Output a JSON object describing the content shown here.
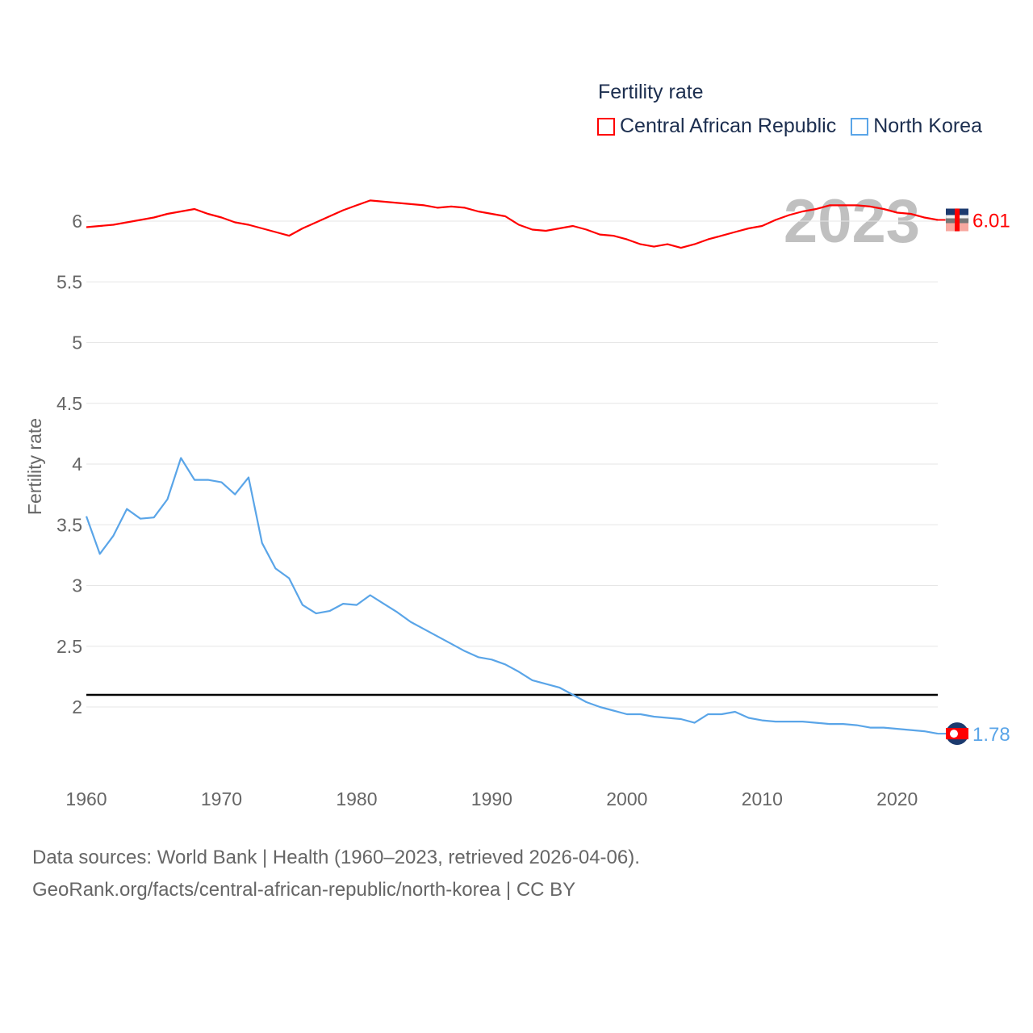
{
  "chart_data": {
    "type": "line",
    "title": "Fertility rate",
    "ylabel": "Fertility rate",
    "xlabel": "",
    "xlim": [
      1960,
      2023
    ],
    "ylim": [
      1.6,
      6.3
    ],
    "x_ticks": [
      1960,
      1970,
      1980,
      1990,
      2000,
      2010,
      2020
    ],
    "y_ticks": [
      2,
      2.5,
      3,
      3.5,
      4,
      4.5,
      5,
      5.5,
      6
    ],
    "grid": true,
    "legend_placement": "top-right",
    "year_watermark": "2023",
    "reference_line": {
      "y": 2.1,
      "color": "#000000"
    },
    "x": [
      1960,
      1961,
      1962,
      1963,
      1964,
      1965,
      1966,
      1967,
      1968,
      1969,
      1970,
      1971,
      1972,
      1973,
      1974,
      1975,
      1976,
      1977,
      1978,
      1979,
      1980,
      1981,
      1982,
      1983,
      1984,
      1985,
      1986,
      1987,
      1988,
      1989,
      1990,
      1991,
      1992,
      1993,
      1994,
      1995,
      1996,
      1997,
      1998,
      1999,
      2000,
      2001,
      2002,
      2003,
      2004,
      2005,
      2006,
      2007,
      2008,
      2009,
      2010,
      2011,
      2012,
      2013,
      2014,
      2015,
      2016,
      2017,
      2018,
      2019,
      2020,
      2021,
      2022,
      2023
    ],
    "series": [
      {
        "name": "Central African Republic",
        "color": "#ff0000",
        "end_label": "6.01",
        "values": [
          5.95,
          5.96,
          5.97,
          5.99,
          6.01,
          6.03,
          6.06,
          6.08,
          6.1,
          6.06,
          6.03,
          5.99,
          5.97,
          5.94,
          5.91,
          5.88,
          5.94,
          5.99,
          6.04,
          6.09,
          6.13,
          6.17,
          6.16,
          6.15,
          6.14,
          6.13,
          6.11,
          6.12,
          6.11,
          6.08,
          6.06,
          6.04,
          5.97,
          5.93,
          5.92,
          5.94,
          5.96,
          5.93,
          5.89,
          5.88,
          5.85,
          5.81,
          5.79,
          5.81,
          5.78,
          5.81,
          5.85,
          5.88,
          5.91,
          5.94,
          5.96,
          6.01,
          6.05,
          6.08,
          6.1,
          6.13,
          6.13,
          6.13,
          6.12,
          6.1,
          6.07,
          6.06,
          6.03,
          6.01
        ]
      },
      {
        "name": "North Korea",
        "color": "#5aa5e8",
        "end_label": "1.78",
        "values": [
          3.57,
          3.26,
          3.41,
          3.63,
          3.55,
          3.56,
          3.71,
          4.05,
          3.87,
          3.87,
          3.85,
          3.75,
          3.89,
          3.35,
          3.14,
          3.06,
          2.84,
          2.77,
          2.79,
          2.85,
          2.84,
          2.92,
          2.85,
          2.78,
          2.7,
          2.64,
          2.58,
          2.52,
          2.46,
          2.41,
          2.39,
          2.35,
          2.29,
          2.22,
          2.19,
          2.16,
          2.1,
          2.04,
          2.0,
          1.97,
          1.94,
          1.94,
          1.92,
          1.91,
          1.9,
          1.87,
          1.94,
          1.94,
          1.96,
          1.91,
          1.89,
          1.88,
          1.88,
          1.88,
          1.87,
          1.86,
          1.86,
          1.85,
          1.83,
          1.83,
          1.82,
          1.81,
          1.8,
          1.78
        ]
      }
    ]
  },
  "footer": {
    "line1": "Data sources: World Bank | Health (1960–2023, retrieved 2026-04-06).",
    "line2": "GeoRank.org/facts/central-african-republic/north-korea | CC BY"
  }
}
